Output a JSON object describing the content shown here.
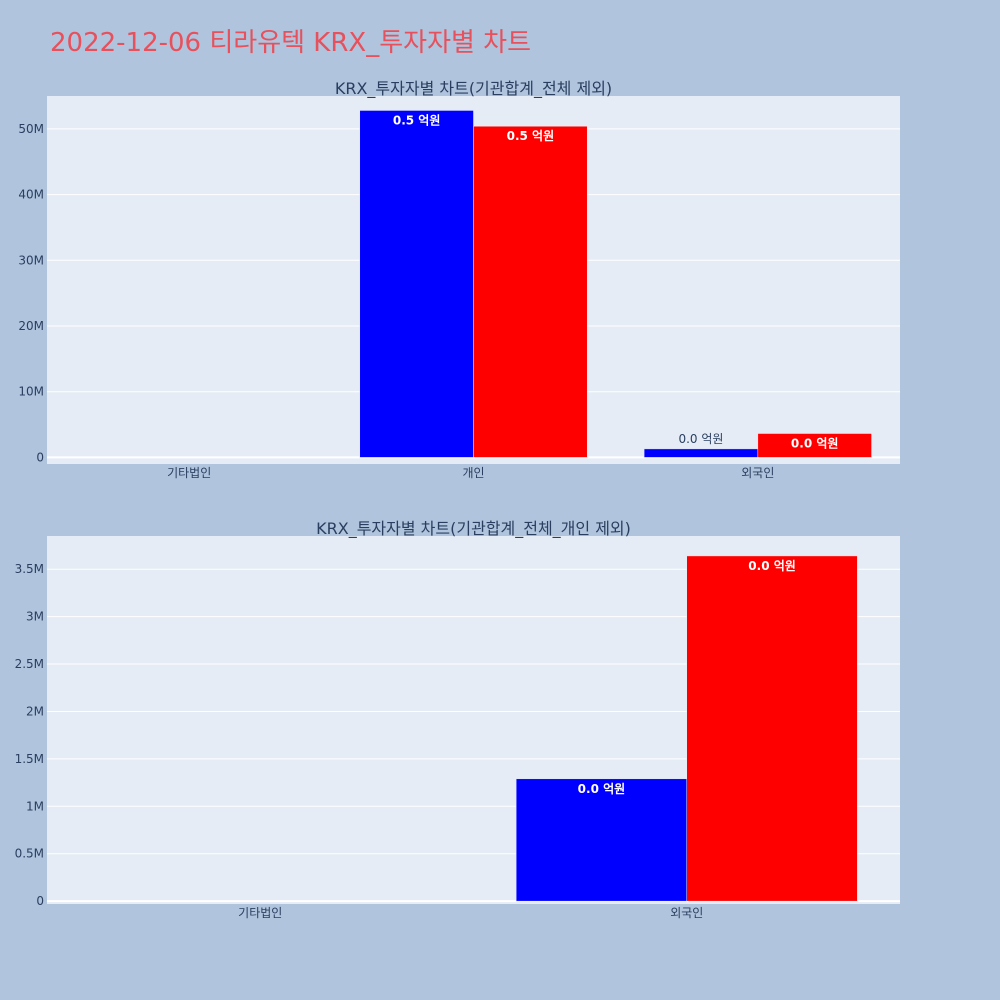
{
  "title": "2022-12-06 티라유텍 KRX_투자자별 차트",
  "colors": {
    "page_bg": "#b0c4de",
    "plot_bg": "#e5ecf6",
    "title": "#e8505b",
    "series_a": "#0000ff",
    "series_b": "#ff0000"
  },
  "chart_data": [
    {
      "type": "bar",
      "title": "KRX_투자자별 차트(기관합계_전체 제외)",
      "categories": [
        "기타법인",
        "개인",
        "외국인"
      ],
      "ylim": [
        -1000000,
        55000000
      ],
      "y_ticks": [
        0,
        10000000,
        20000000,
        30000000,
        40000000,
        50000000
      ],
      "y_tick_labels": [
        "0",
        "10M",
        "20M",
        "30M",
        "40M",
        "50M"
      ],
      "grid": true,
      "series": [
        {
          "values": [
            0,
            52800000,
            1300000
          ],
          "labels": [
            "",
            "0.5 억원",
            "0.0 억원"
          ],
          "color": "#0000ff"
        },
        {
          "values": [
            0,
            50400000,
            3640000
          ],
          "labels": [
            "",
            "0.5 억원",
            "0.0 억원"
          ],
          "color": "#ff0000"
        }
      ]
    },
    {
      "type": "bar",
      "title": "KRX_투자자별 차트(기관합계_전체_개인 제외)",
      "categories": [
        "기타법인",
        "외국인"
      ],
      "ylim": [
        -30000,
        3850000
      ],
      "y_ticks": [
        0,
        500000,
        1000000,
        1500000,
        2000000,
        2500000,
        3000000,
        3500000
      ],
      "y_tick_labels": [
        "0",
        "0.5M",
        "1M",
        "1.5M",
        "2M",
        "2.5M",
        "3M",
        "3.5M"
      ],
      "grid": true,
      "series": [
        {
          "values": [
            0,
            1290000
          ],
          "labels": [
            "",
            "0.0 억원"
          ],
          "color": "#0000ff"
        },
        {
          "values": [
            0,
            3640000
          ],
          "labels": [
            "",
            "0.0 억원"
          ],
          "color": "#ff0000"
        }
      ]
    }
  ]
}
